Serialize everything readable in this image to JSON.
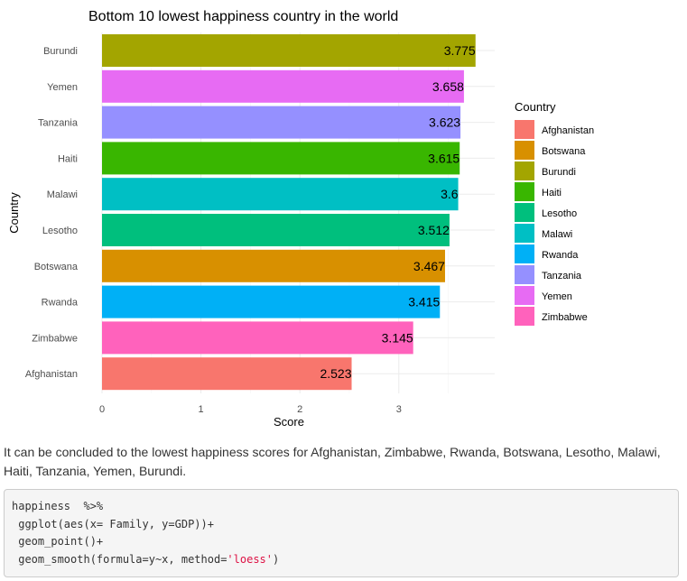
{
  "chart_data": {
    "type": "bar",
    "orientation": "horizontal",
    "title": "Bottom 10 lowest happiness country in the world",
    "xlabel": "Score",
    "ylabel": "Country",
    "xlim": [
      0,
      3.9
    ],
    "xticks": [
      "0",
      "1",
      "2",
      "3"
    ],
    "categories": [
      "Burundi",
      "Yemen",
      "Tanzania",
      "Haiti",
      "Malawi",
      "Lesotho",
      "Botswana",
      "Rwanda",
      "Zimbabwe",
      "Afghanistan"
    ],
    "values": [
      3.775,
      3.658,
      3.623,
      3.615,
      3.6,
      3.512,
      3.467,
      3.415,
      3.145,
      2.523
    ],
    "value_labels": [
      "3.775",
      "3.658",
      "3.623",
      "3.615",
      "3.6",
      "3.512",
      "3.467",
      "3.415",
      "3.145",
      "2.523"
    ],
    "grid": true,
    "legend": {
      "title": "Country",
      "position": "right",
      "entries": [
        "Afghanistan",
        "Botswana",
        "Burundi",
        "Haiti",
        "Lesotho",
        "Malawi",
        "Rwanda",
        "Tanzania",
        "Yemen",
        "Zimbabwe"
      ]
    },
    "colors": {
      "Afghanistan": "#F8766D",
      "Botswana": "#D89000",
      "Burundi": "#A3A500",
      "Haiti": "#39B600",
      "Lesotho": "#00BF7D",
      "Malawi": "#00BFC4",
      "Rwanda": "#00B0F6",
      "Tanzania": "#9590FF",
      "Yemen": "#E76BF3",
      "Zimbabwe": "#FF62BC"
    }
  },
  "text": {
    "conclusion": "It can be concluded to the lowest happiness scores for Afghanistan, Zimbabwe, Rwanda, Botswana, Lesotho, Malawi, Haiti, Tanzania, Yemen, Burundi."
  },
  "code": {
    "line1": "happiness  %>%",
    "line2": " ggplot(aes(x= Family, y=GDP))+",
    "line3": " geom_point()+",
    "line4_pre": " geom_smooth(formula=y~x, method=",
    "line4_str": "'loess'",
    "line4_post": ")"
  }
}
